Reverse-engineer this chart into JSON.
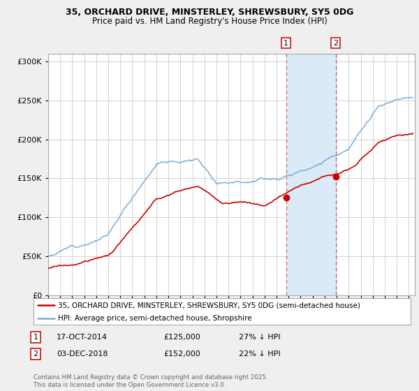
{
  "title_line1": "35, ORCHARD DRIVE, MINSTERLEY, SHREWSBURY, SY5 0DG",
  "title_line2": "Price paid vs. HM Land Registry's House Price Index (HPI)",
  "ylim": [
    0,
    310000
  ],
  "xlim_start": 1995.0,
  "xlim_end": 2025.5,
  "hpi_color": "#7aadd6",
  "price_color": "#cc0000",
  "marker_color": "#cc0000",
  "sale1_date_num": 2014.79,
  "sale1_price": 125000,
  "sale2_date_num": 2018.92,
  "sale2_price": 152000,
  "legend_label1": "35, ORCHARD DRIVE, MINSTERLEY, SHREWSBURY, SY5 0DG (semi-detached house)",
  "legend_label2": "HPI: Average price, semi-detached house, Shropshire",
  "note1_label": "1",
  "note1_date": "17-OCT-2014",
  "note1_price": "£125,000",
  "note1_pct": "27% ↓ HPI",
  "note2_label": "2",
  "note2_date": "03-DEC-2018",
  "note2_price": "£152,000",
  "note2_pct": "22% ↓ HPI",
  "copyright_text": "Contains HM Land Registry data © Crown copyright and database right 2025.\nThis data is licensed under the Open Government Licence v3.0.",
  "background_color": "#efefef",
  "plot_bg_color": "#ffffff",
  "grid_color": "#cccccc",
  "shaded_region_color": "#daeaf7"
}
